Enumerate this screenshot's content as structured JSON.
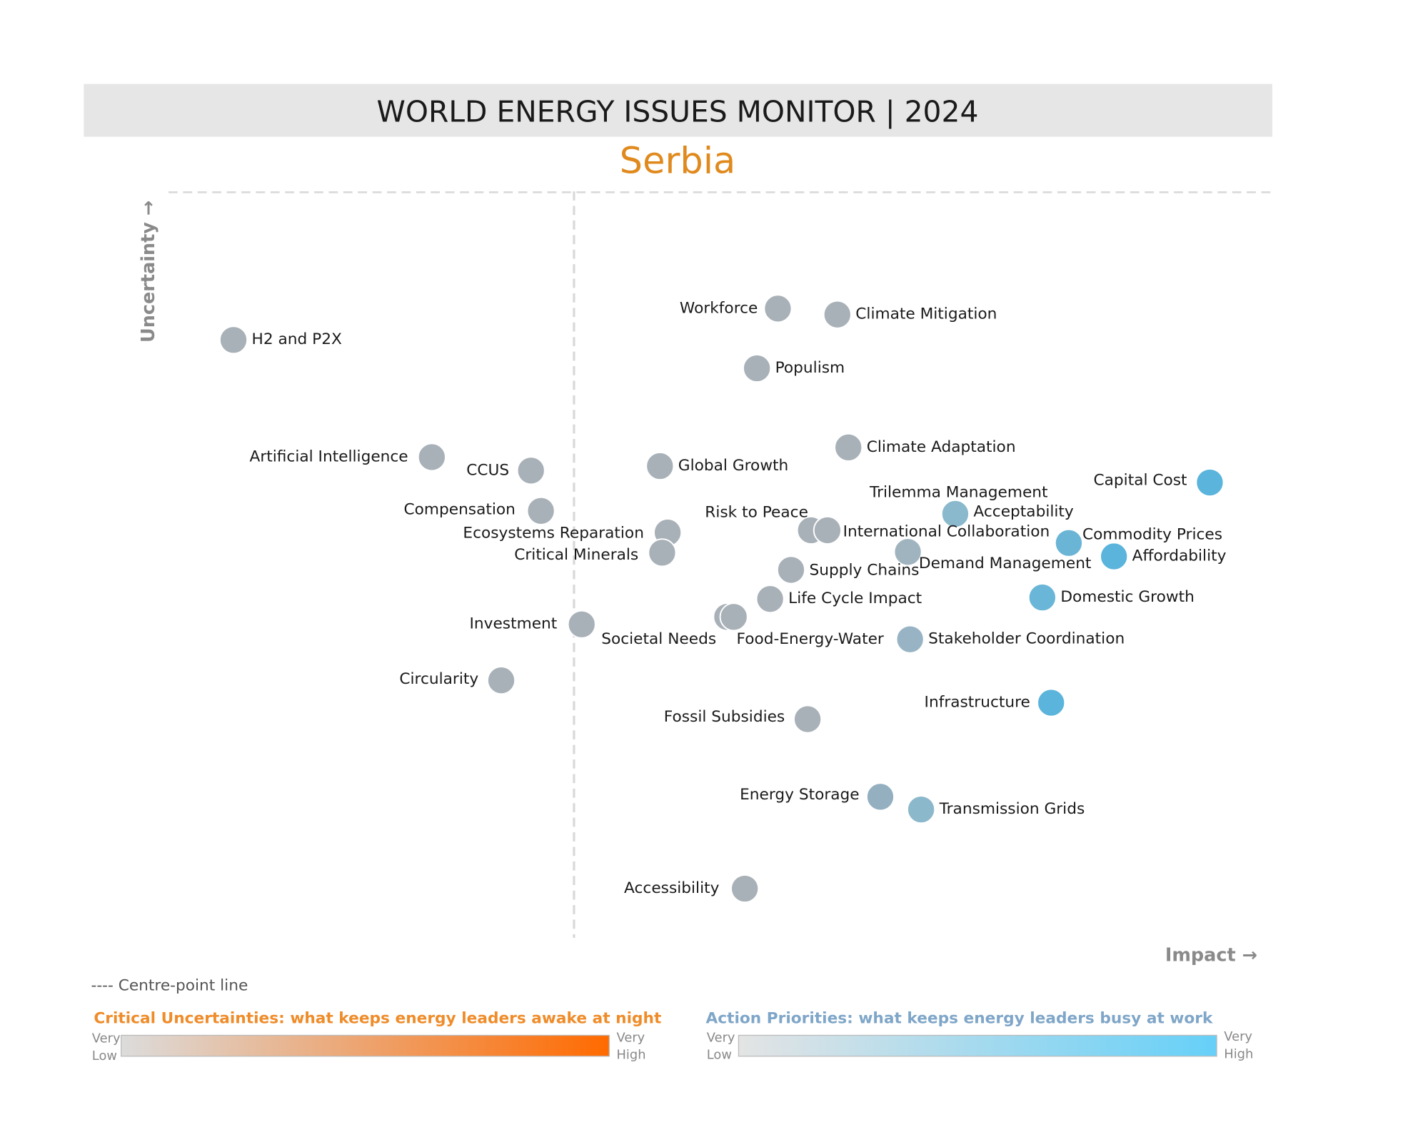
{
  "header": {
    "title": "WORLD ENERGY ISSUES MONITOR | 2024",
    "subtitle": "Serbia"
  },
  "chart_data": {
    "type": "scatter",
    "x_label": "Impact →",
    "y_label": "Uncertainty →",
    "xlim": [
      0,
      100
    ],
    "ylim": [
      0,
      100
    ],
    "centre_x": 36.8,
    "labels": [
      "H2 and P2X",
      "Workforce",
      "Climate Mitigation",
      "Populism",
      "Artificial Intelligence",
      "CCUS",
      "Global Growth",
      "Climate Adaptation",
      "Capital Cost",
      "Compensation",
      "Trilemma Management",
      "Acceptability",
      "Risk to Peace",
      "International Collaboration",
      "Ecosystems Reparation",
      "Critical Minerals",
      "Commodity Prices",
      "Affordability",
      "Demand Management",
      "Supply Chains",
      "Life Cycle Impact",
      "Domestic Growth",
      "Investment",
      "Societal Needs",
      "Food-Energy-Water",
      "Stakeholder Coordination",
      "Circularity",
      "Infrastructure",
      "Fossil Subsidies",
      "Energy Storage",
      "Transmission Grids",
      "Accessibility"
    ],
    "x": [
      5.9,
      55.3,
      60.7,
      53.4,
      23.9,
      32.9,
      44.6,
      61.7,
      94.5,
      33.8,
      71.3,
      71.4,
      58.3,
      59.8,
      45.3,
      44.8,
      81.7,
      85.8,
      67.1,
      56.5,
      54.6,
      79.3,
      37.5,
      50.7,
      51.3,
      67.3,
      30.2,
      80.1,
      58.0,
      64.6,
      68.3,
      52.3
    ],
    "y": [
      80.1,
      84.3,
      83.5,
      76.3,
      64.4,
      62.6,
      63.2,
      65.7,
      61.0,
      57.2,
      56.8,
      56.8,
      54.6,
      54.6,
      54.3,
      51.6,
      52.9,
      51.1,
      51.7,
      49.3,
      45.4,
      45.6,
      42.0,
      43.0,
      43.0,
      40.0,
      34.5,
      31.5,
      29.3,
      18.9,
      17.2,
      6.6
    ],
    "colors": [
      "#a9b1b8",
      "#a9b1b8",
      "#a9b1b8",
      "#a9b1b8",
      "#a9b1b8",
      "#a9b1b8",
      "#a9b1b8",
      "#a9b1b8",
      "#5ab4dc",
      "#a9b1b8",
      "#8ab8cc",
      "#8ab8cc",
      "#a9b1b8",
      "#a9b1b8",
      "#a9b1b8",
      "#a9b1b8",
      "#6ab4d6",
      "#5ab4dc",
      "#a0b4c0",
      "#a9b1b8",
      "#a9b1b8",
      "#6ab6d8",
      "#a9b1b8",
      "#a9b1b8",
      "#a9b1b8",
      "#98b4c4",
      "#a9b1b8",
      "#5ab4dc",
      "#a9b1b8",
      "#94b0c0",
      "#8cb8cc",
      "#a9b1b8"
    ]
  },
  "legend": {
    "centre_line": "---- Centre-point line",
    "uncertainties": {
      "title": "Critical Uncertainties: what keeps energy leaders awake at night",
      "low": [
        "Very",
        "Low"
      ],
      "high": [
        "Very",
        "High"
      ],
      "gradient": [
        "#dcdcdc",
        "#ff6a00"
      ]
    },
    "priorities": {
      "title": "Action Priorities: what keeps energy leaders busy at work",
      "low": [
        "Very",
        "Low"
      ],
      "high": [
        "Very",
        "High"
      ],
      "gradient": [
        "#e4e4e4",
        "#66d0f8"
      ]
    }
  }
}
